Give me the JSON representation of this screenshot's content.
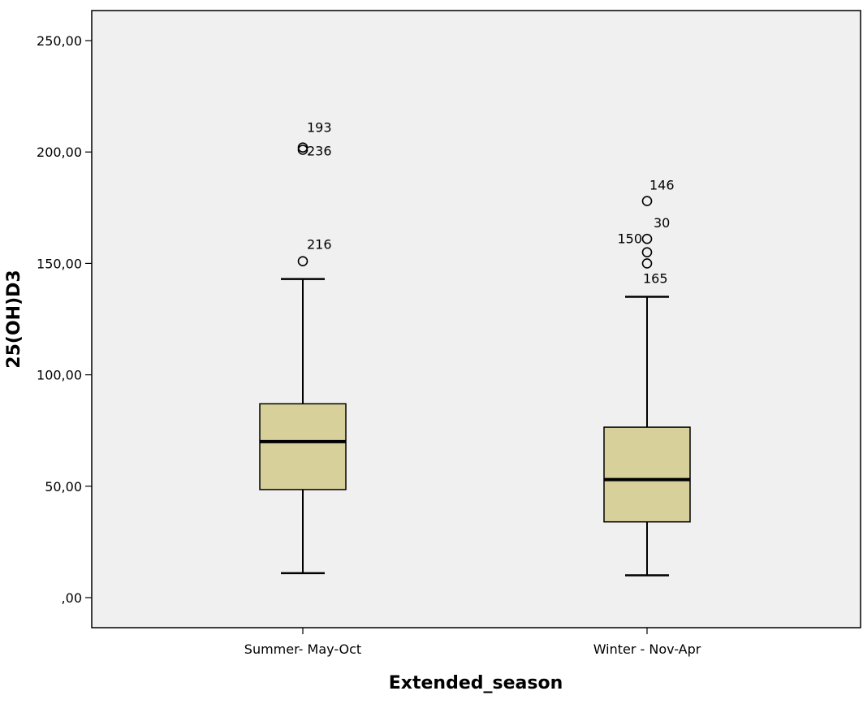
{
  "chart_data": {
    "type": "boxplot",
    "xlabel": "Extended_season",
    "ylabel": "25(OH)D3",
    "ylim": [
      -5,
      265
    ],
    "yticks": [
      0,
      50,
      100,
      150,
      200,
      250
    ],
    "ytick_labels": [
      ",00",
      "50,00",
      "100,00",
      "150,00",
      "200,00",
      "250,00"
    ],
    "grid": false,
    "legend": "none",
    "colors": {
      "box_fill": "#d7d09b",
      "plot_bg": "#f0f0f0",
      "stroke": "#000000"
    },
    "categories": [
      "Summer- May-Oct",
      "Winter - Nov-Apr"
    ],
    "boxes": [
      {
        "category": "Summer- May-Oct",
        "whisker_low": 11,
        "q1": 48.5,
        "median": 70,
        "q3": 87,
        "whisker_high": 143,
        "outliers": [
          {
            "label": "193",
            "value": 202
          },
          {
            "label": "236",
            "value": 201
          },
          {
            "label": "216",
            "value": 151
          }
        ]
      },
      {
        "category": "Winter - Nov-Apr",
        "whisker_low": 10,
        "q1": 34,
        "median": 53,
        "q3": 76.5,
        "whisker_high": 135,
        "outliers": [
          {
            "label": "146",
            "value": 178
          },
          {
            "label": "30",
            "value": 161
          },
          {
            "label": "150",
            "value": 155
          },
          {
            "label": "165",
            "value": 150
          }
        ]
      }
    ]
  }
}
